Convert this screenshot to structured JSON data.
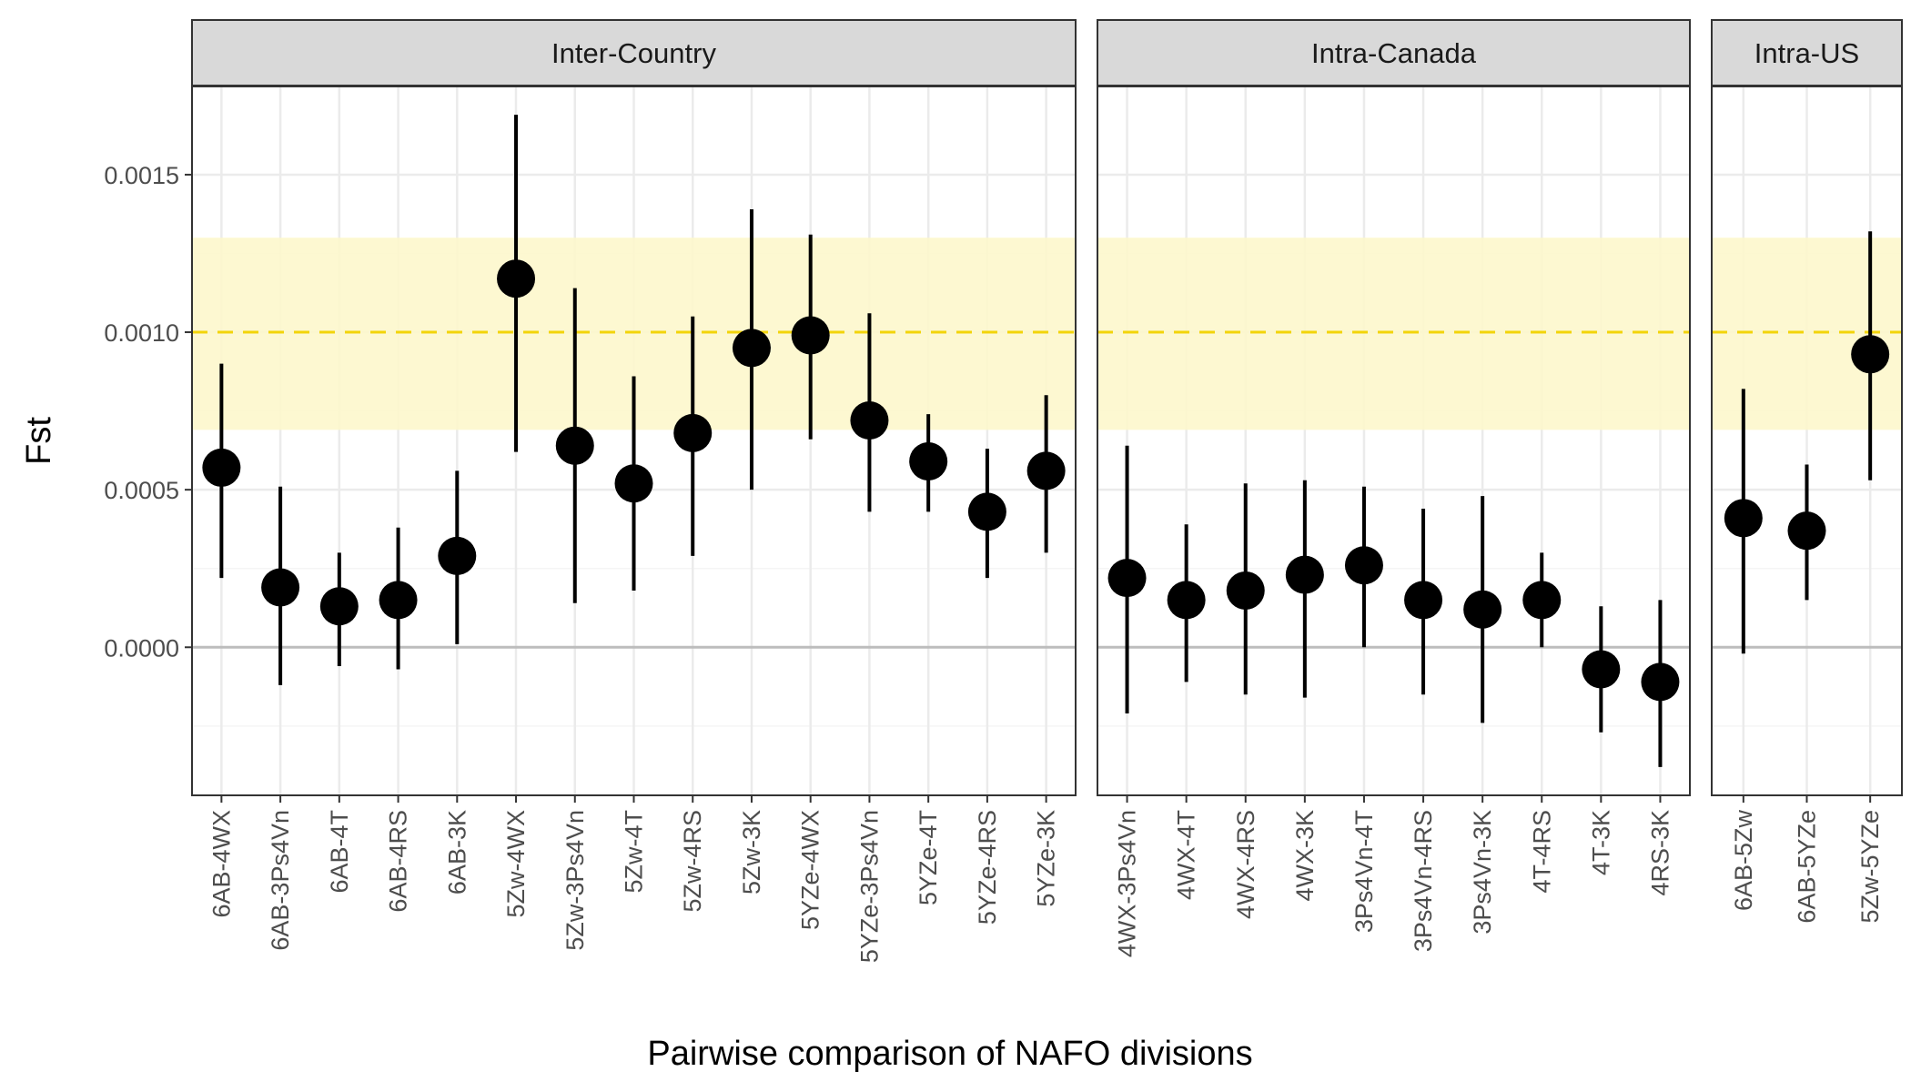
{
  "chart_data": {
    "type": "scatter",
    "xlabel": "Pairwise comparison of NAFO divisions",
    "ylabel": "Fst",
    "ylim": [
      -0.00047,
      0.00178
    ],
    "yticks": [
      0,
      0.0005,
      0.001,
      0.0015
    ],
    "ytick_labels": [
      "0.0000",
      "0.0005",
      "0.0010",
      "0.0015"
    ],
    "reference_line": 0.001,
    "reference_band": [
      0.00069,
      0.0013
    ],
    "zero_line": 0,
    "grid": true,
    "facets": [
      {
        "name": "Inter-Country",
        "categories": [
          "6AB-4WX",
          "6AB-3Ps4Vn",
          "6AB-4T",
          "6AB-4RS",
          "6AB-3K",
          "5Zw-4WX",
          "5Zw-3Ps4Vn",
          "5Zw-4T",
          "5Zw-4RS",
          "5Zw-3K",
          "5YZe-4WX",
          "5YZe-3Ps4Vn",
          "5YZe-4T",
          "5YZe-4RS",
          "5YZe-3K"
        ],
        "values": [
          0.00057,
          0.00019,
          0.00013,
          0.00015,
          0.00029,
          0.00117,
          0.00064,
          0.00052,
          0.00068,
          0.00095,
          0.00099,
          0.00072,
          0.00059,
          0.00043,
          0.00056
        ],
        "lower": [
          0.00022,
          -0.00012,
          -6e-05,
          -7e-05,
          1e-05,
          0.00062,
          0.00014,
          0.00018,
          0.00029,
          0.0005,
          0.00066,
          0.00043,
          0.00043,
          0.00022,
          0.0003
        ],
        "upper": [
          0.0009,
          0.00051,
          0.0003,
          0.00038,
          0.00056,
          0.00169,
          0.00114,
          0.00086,
          0.00105,
          0.00139,
          0.00131,
          0.00106,
          0.00074,
          0.00063,
          0.0008
        ]
      },
      {
        "name": "Intra-Canada",
        "categories": [
          "4WX-3Ps4Vn",
          "4WX-4T",
          "4WX-4RS",
          "4WX-3K",
          "3Ps4Vn-4T",
          "3Ps4Vn-4RS",
          "3Ps4Vn-3K",
          "4T-4RS",
          "4T-3K",
          "4RS-3K"
        ],
        "values": [
          0.00022,
          0.00015,
          0.00018,
          0.00023,
          0.00026,
          0.00015,
          0.00012,
          0.00015,
          -7e-05,
          -0.00011
        ],
        "lower": [
          -0.00021,
          -0.00011,
          -0.00015,
          -0.00016,
          0.0,
          -0.00015,
          -0.00024,
          0.0,
          -0.00027,
          -0.00038
        ],
        "upper": [
          0.00064,
          0.00039,
          0.00052,
          0.00053,
          0.00051,
          0.00044,
          0.00048,
          0.0003,
          0.00013,
          0.00015
        ]
      },
      {
        "name": "Intra-US",
        "categories": [
          "6AB-5Zw",
          "6AB-5YZe",
          "5Zw-5YZe"
        ],
        "values": [
          0.00041,
          0.00037,
          0.00093
        ],
        "lower": [
          -2e-05,
          0.00015,
          0.00053
        ],
        "upper": [
          0.00082,
          0.00058,
          0.00132
        ]
      }
    ],
    "colors": {
      "point": "#000000",
      "errorbar": "#000000",
      "reference_line": "#f2d40a",
      "reference_band": "#fdf7cc",
      "strip_fill": "#d9d9d9",
      "grid_major": "#ebebeb",
      "grid_minor": "#f5f5f5",
      "zero_line": "#bdbdbd"
    }
  }
}
